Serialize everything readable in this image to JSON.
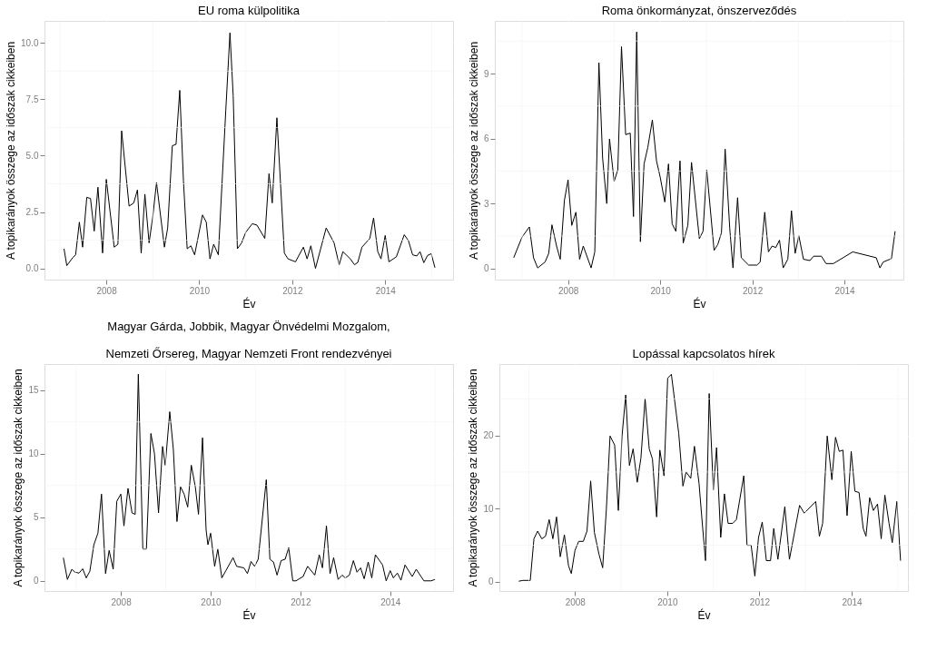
{
  "chart_data": [
    {
      "type": "line",
      "title": "EU roma külpolitika",
      "xlabel": "Év",
      "ylabel": "A topikarányok összege az időszak cikkeiben",
      "grid": true,
      "xlim": [
        2006.67,
        2015.46
      ],
      "ylim": [
        -0.5,
        10.98
      ],
      "xticks": [
        {
          "value": 2007,
          "label": null
        },
        2008,
        {
          "value": 2009,
          "label": null
        },
        2010,
        {
          "value": 2011,
          "label": null
        },
        2012,
        {
          "value": 2013,
          "label": null
        },
        2014,
        {
          "value": 2015,
          "label": null
        }
      ],
      "yticks": [
        {
          "value": 0,
          "label": "0.0"
        },
        {
          "value": 1.25,
          "label": null
        },
        {
          "value": 2.5,
          "label": "2.5"
        },
        {
          "value": 3.75,
          "label": null
        },
        {
          "value": 5,
          "label": "5.0"
        },
        {
          "value": 6.25,
          "label": null
        },
        {
          "value": 7.5,
          "label": "7.5"
        },
        {
          "value": 8.75,
          "label": null
        },
        {
          "value": 10,
          "label": "10.0"
        }
      ],
      "x": [
        2007.09,
        2007.15,
        2007.28,
        2007.34,
        2007.42,
        2007.49,
        2007.58,
        2007.66,
        2007.74,
        2007.82,
        2007.92,
        2008.0,
        2008.17,
        2008.25,
        2008.33,
        2008.49,
        2008.59,
        2008.67,
        2008.75,
        2008.83,
        2008.92,
        2009.0,
        2009.08,
        2009.25,
        2009.32,
        2009.42,
        2009.5,
        2009.58,
        2009.66,
        2009.74,
        2009.82,
        2009.9,
        2010.07,
        2010.15,
        2010.23,
        2010.31,
        2010.41,
        2010.57,
        2010.66,
        2010.73,
        2010.82,
        2010.91,
        2011.0,
        2011.14,
        2011.24,
        2011.41,
        2011.5,
        2011.57,
        2011.67,
        2011.83,
        2011.91,
        2012.07,
        2012.24,
        2012.32,
        2012.4,
        2012.5,
        2012.73,
        2012.9,
        2013.01,
        2013.09,
        2013.25,
        2013.34,
        2013.41,
        2013.5,
        2013.67,
        2013.75,
        2013.84,
        2013.91,
        2014.0,
        2014.08,
        2014.24,
        2014.41,
        2014.5,
        2014.59,
        2014.68,
        2014.75,
        2014.83,
        2014.91,
        2014.99,
        2015.07
      ],
      "series": [
        {
          "color": "#000000",
          "values": [
            0.87,
            0.12,
            0.48,
            0.6,
            2.05,
            0.94,
            3.15,
            3.1,
            1.65,
            3.6,
            0.68,
            3.95,
            0.94,
            1.07,
            6.1,
            2.76,
            2.9,
            3.48,
            0.68,
            3.29,
            1.13,
            2.3,
            3.8,
            0.94,
            1.79,
            5.44,
            5.5,
            7.9,
            3.87,
            0.87,
            1.0,
            0.6,
            2.37,
            2.05,
            0.42,
            1.07,
            0.6,
            7.0,
            10.45,
            7.65,
            0.87,
            1.13,
            1.6,
            1.98,
            1.92,
            1.33,
            4.2,
            2.9,
            6.68,
            0.68,
            0.42,
            0.29,
            0.94,
            0.42,
            1.0,
            0.0,
            1.79,
            1.13,
            0.16,
            0.74,
            0.42,
            0.16,
            0.26,
            0.94,
            1.33,
            2.24,
            0.74,
            0.42,
            1.46,
            0.29,
            0.51,
            1.49,
            1.23,
            0.6,
            0.55,
            0.74,
            0.25,
            0.57,
            0.65,
            0.03
          ]
        }
      ]
    },
    {
      "type": "line",
      "title": "Roma önkormányzat, önszerveződés",
      "xlabel": "Év",
      "ylabel": "A topikarányok összege az időszak cikkeiben",
      "grid": true,
      "xlim": [
        2006.41,
        2015.28
      ],
      "ylim": [
        -0.51,
        11.43
      ],
      "xticks": [
        {
          "value": 2007,
          "label": null
        },
        2008,
        {
          "value": 2009,
          "label": null
        },
        2010,
        {
          "value": 2011,
          "label": null
        },
        2012,
        {
          "value": 2013,
          "label": null
        },
        2014,
        {
          "value": 2015,
          "label": null
        }
      ],
      "yticks": [
        0,
        {
          "value": 1.5,
          "label": null
        },
        3,
        {
          "value": 4.5,
          "label": null
        },
        6,
        {
          "value": 7.5,
          "label": null
        },
        9,
        {
          "value": 10.5,
          "label": null
        }
      ],
      "x": [
        2006.82,
        2007.0,
        2007.16,
        2007.25,
        2007.34,
        2007.5,
        2007.58,
        2007.65,
        2007.75,
        2007.83,
        2007.92,
        2008.0,
        2008.08,
        2008.17,
        2008.25,
        2008.33,
        2008.5,
        2008.58,
        2008.67,
        2008.75,
        2008.84,
        2008.9,
        2009.0,
        2009.08,
        2009.16,
        2009.25,
        2009.35,
        2009.42,
        2009.49,
        2009.57,
        2009.65,
        2009.73,
        2009.83,
        2009.92,
        2010.0,
        2010.1,
        2010.18,
        2010.26,
        2010.34,
        2010.43,
        2010.5,
        2010.6,
        2010.68,
        2010.85,
        2010.93,
        2011.01,
        2011.17,
        2011.25,
        2011.33,
        2011.41,
        2011.51,
        2011.58,
        2011.68,
        2011.76,
        2011.92,
        2012.1,
        2012.17,
        2012.27,
        2012.35,
        2012.43,
        2012.51,
        2012.59,
        2012.67,
        2012.77,
        2012.85,
        2012.93,
        2013.01,
        2013.11,
        2013.25,
        2013.33,
        2013.5,
        2013.6,
        2013.76,
        2014.18,
        2014.69,
        2014.77,
        2014.84,
        2015.02,
        2015.1
      ],
      "series": [
        {
          "color": "#000000",
          "values": [
            0.5,
            1.45,
            1.92,
            0.5,
            0.03,
            0.3,
            0.7,
            2.02,
            1.04,
            0.43,
            3.14,
            4.09,
            1.99,
            2.6,
            0.43,
            1.04,
            0.03,
            0.77,
            9.5,
            5.1,
            3.0,
            5.98,
            4.02,
            4.56,
            10.24,
            6.18,
            6.25,
            2.4,
            10.92,
            1.24,
            4.83,
            5.58,
            6.86,
            4.97,
            4.22,
            3.07,
            4.83,
            2.06,
            1.72,
            4.97,
            1.18,
            1.99,
            4.9,
            1.38,
            1.72,
            4.56,
            0.84,
            1.11,
            1.65,
            5.51,
            1.85,
            0.03,
            3.27,
            0.5,
            0.16,
            0.16,
            0.3,
            2.6,
            0.77,
            1.04,
            0.97,
            1.31,
            0.03,
            0.43,
            2.67,
            0.7,
            1.52,
            0.43,
            0.37,
            0.57,
            0.57,
            0.23,
            0.23,
            0.77,
            0.5,
            0.03,
            0.3,
            0.46,
            1.72
          ]
        }
      ]
    },
    {
      "type": "line",
      "title": "Magyar Gárda, Jobbik, Magyar Önvédelmi Mozgalom,\nNemzeti Őrsereg, Magyar Nemzeti Front rendezvényei",
      "xlabel": "Év",
      "ylabel": "A topikarányok összege az időszak cikkeiben",
      "grid": true,
      "xlim": [
        2006.3,
        2015.4
      ],
      "ylim": [
        -0.8,
        17.05
      ],
      "xticks": [
        {
          "value": 2007,
          "label": null
        },
        2008,
        {
          "value": 2009,
          "label": null
        },
        2010,
        {
          "value": 2011,
          "label": null
        },
        2012,
        {
          "value": 2013,
          "label": null
        },
        2014,
        {
          "value": 2015,
          "label": null
        }
      ],
      "yticks": [
        0,
        {
          "value": 2.5,
          "label": null
        },
        5,
        {
          "value": 7.5,
          "label": null
        },
        10,
        {
          "value": 12.5,
          "label": null
        },
        15
      ],
      "x": [
        2006.72,
        2006.81,
        2006.91,
        2006.98,
        2007.07,
        2007.15,
        2007.23,
        2007.31,
        2007.4,
        2007.49,
        2007.57,
        2007.66,
        2007.74,
        2007.83,
        2007.91,
        2008.0,
        2008.07,
        2008.16,
        2008.25,
        2008.32,
        2008.39,
        2008.49,
        2008.57,
        2008.67,
        2008.75,
        2008.84,
        2008.93,
        2008.99,
        2009.09,
        2009.17,
        2009.25,
        2009.33,
        2009.41,
        2009.49,
        2009.57,
        2009.66,
        2009.73,
        2009.82,
        2009.9,
        2009.94,
        2010.0,
        2010.09,
        2010.16,
        2010.25,
        2010.34,
        2010.5,
        2010.58,
        2010.74,
        2010.82,
        2010.9,
        2010.98,
        2011.06,
        2011.24,
        2011.32,
        2011.4,
        2011.48,
        2011.57,
        2011.66,
        2011.74,
        2011.83,
        2011.9,
        2012.06,
        2012.16,
        2012.32,
        2012.42,
        2012.49,
        2012.58,
        2012.66,
        2012.74,
        2012.84,
        2012.93,
        2013.0,
        2013.09,
        2013.18,
        2013.26,
        2013.34,
        2013.42,
        2013.51,
        2013.59,
        2013.67,
        2013.83,
        2013.91,
        2014.0,
        2014.07,
        2014.16,
        2014.24,
        2014.33,
        2014.49,
        2014.58,
        2014.75,
        2014.91,
        2015.0
      ],
      "series": [
        {
          "color": "#000000",
          "values": [
            1.82,
            0.11,
            0.91,
            0.68,
            0.61,
            0.95,
            0.23,
            0.75,
            2.84,
            3.75,
            6.82,
            0.57,
            2.39,
            0.91,
            6.25,
            6.82,
            4.32,
            7.27,
            5.34,
            5.23,
            16.25,
            2.5,
            2.5,
            11.59,
            10.0,
            5.34,
            10.57,
            9.09,
            13.3,
            10.34,
            4.66,
            7.39,
            6.82,
            5.8,
            9.09,
            7.39,
            5.23,
            11.25,
            3.98,
            2.84,
            3.75,
            1.14,
            2.5,
            0.23,
            0.8,
            1.82,
            1.14,
            1.02,
            0.57,
            1.52,
            1.14,
            1.7,
            7.95,
            1.7,
            1.48,
            0.45,
            1.59,
            1.7,
            2.61,
            0.0,
            0.0,
            0.34,
            1.14,
            0.45,
            2.05,
            1.02,
            4.32,
            0.57,
            1.82,
            0.11,
            0.45,
            0.23,
            0.45,
            1.59,
            0.68,
            1.02,
            0.16,
            1.48,
            0.23,
            2.05,
            1.25,
            0.0,
            0.8,
            0.23,
            0.61,
            0.05,
            1.25,
            0.34,
            0.91,
            0.0,
            0.0,
            0.11
          ]
        }
      ]
    },
    {
      "type": "line",
      "title": "Lopással kapcsolatos hírek",
      "xlabel": "Év",
      "ylabel": "A topikarányok összege az időszak cikkeiben",
      "grid": true,
      "xlim": [
        2006.36,
        2015.22
      ],
      "ylim": [
        -1.27,
        29.77
      ],
      "xticks": [
        {
          "value": 2007,
          "label": null
        },
        2008,
        {
          "value": 2009,
          "label": null
        },
        2010,
        {
          "value": 2011,
          "label": null
        },
        2012,
        {
          "value": 2013,
          "label": null
        },
        2014,
        {
          "value": 2015,
          "label": null
        }
      ],
      "yticks": [
        0,
        {
          "value": 5,
          "label": null
        },
        10,
        {
          "value": 15,
          "label": null
        },
        20,
        {
          "value": 25,
          "label": null
        }
      ],
      "x": [
        2006.78,
        2006.87,
        2007.03,
        2007.11,
        2007.19,
        2007.28,
        2007.36,
        2007.44,
        2007.52,
        2007.6,
        2007.68,
        2007.77,
        2007.86,
        2007.92,
        2008.0,
        2008.08,
        2008.18,
        2008.26,
        2008.34,
        2008.42,
        2008.52,
        2008.6,
        2008.68,
        2008.76,
        2008.86,
        2008.94,
        2009.02,
        2009.1,
        2009.18,
        2009.26,
        2009.35,
        2009.43,
        2009.52,
        2009.61,
        2009.68,
        2009.77,
        2009.84,
        2009.93,
        2010.01,
        2010.09,
        2010.25,
        2010.34,
        2010.41,
        2010.51,
        2010.59,
        2010.69,
        2010.77,
        2010.83,
        2010.91,
        2011.0,
        2011.07,
        2011.16,
        2011.24,
        2011.32,
        2011.42,
        2011.5,
        2011.66,
        2011.73,
        2011.82,
        2011.9,
        2011.98,
        2012.06,
        2012.15,
        2012.24,
        2012.31,
        2012.4,
        2012.55,
        2012.65,
        2012.87,
        2012.97,
        2013.22,
        2013.3,
        2013.37,
        2013.47,
        2013.57,
        2013.65,
        2013.73,
        2013.81,
        2013.9,
        2013.99,
        2014.07,
        2014.16,
        2014.25,
        2014.31,
        2014.39,
        2014.47,
        2014.56,
        2014.64,
        2014.72,
        2014.81,
        2014.88,
        2014.98,
        2015.06
      ],
      "series": [
        {
          "color": "#000000",
          "values": [
            0.07,
            0.18,
            0.18,
            5.87,
            6.92,
            5.87,
            6.22,
            8.5,
            5.87,
            8.86,
            3.41,
            6.4,
            2.18,
            1.12,
            4.29,
            5.52,
            5.52,
            6.92,
            13.78,
            6.75,
            3.76,
            1.9,
            9.91,
            19.93,
            18.7,
            9.74,
            19.93,
            25.55,
            15.89,
            18.17,
            13.6,
            16.94,
            25.03,
            18.17,
            16.77,
            8.86,
            18.0,
            14.48,
            27.84,
            28.37,
            20.28,
            13.08,
            15.01,
            14.13,
            18.52,
            13.43,
            7.28,
            2.88,
            25.73,
            12.55,
            18.35,
            6.05,
            12.02,
            7.98,
            7.98,
            8.5,
            14.48,
            4.99,
            4.99,
            0.77,
            6.05,
            8.15,
            2.88,
            2.88,
            7.28,
            3.06,
            10.26,
            3.06,
            10.44,
            9.38,
            10.97,
            6.22,
            7.98,
            19.93,
            13.95,
            19.75,
            17.82,
            18.0,
            9.03,
            17.82,
            12.37,
            12.2,
            7.28,
            6.22,
            11.49,
            9.74,
            10.62,
            5.87,
            11.85,
            7.98,
            5.34,
            10.97,
            2.88
          ]
        }
      ]
    }
  ]
}
